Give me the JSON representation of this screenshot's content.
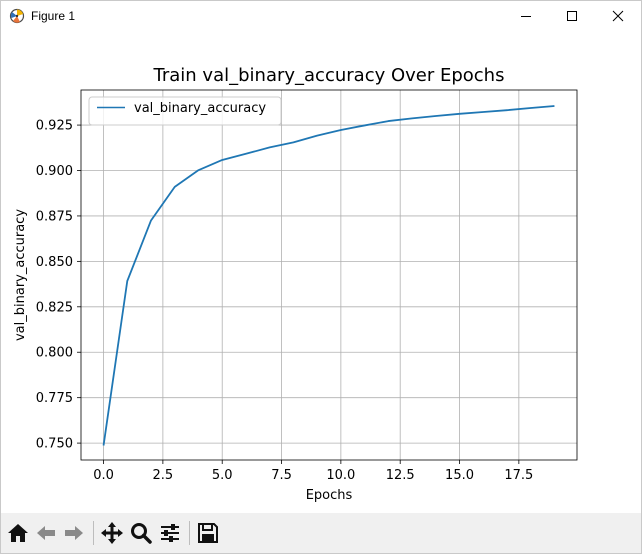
{
  "window": {
    "title": "Figure 1",
    "icons": {
      "app": "matplotlib-figure-icon",
      "minimize": "minimize-icon",
      "maximize": "maximize-icon",
      "close": "close-icon"
    }
  },
  "toolbar": {
    "buttons": [
      {
        "name": "home-button",
        "icon": "home-icon"
      },
      {
        "name": "back-button",
        "icon": "back-arrow-icon"
      },
      {
        "name": "forward-button",
        "icon": "forward-arrow-icon"
      },
      {
        "name": "pan-button",
        "icon": "move-icon"
      },
      {
        "name": "zoom-button",
        "icon": "zoom-icon"
      },
      {
        "name": "configure-subplots-button",
        "icon": "sliders-icon"
      },
      {
        "name": "save-button",
        "icon": "save-icon"
      }
    ]
  },
  "chart_data": {
    "type": "line",
    "title": "Train val_binary_accuracy Over Epochs",
    "xlabel": "Epochs",
    "ylabel": "val_binary_accuracy",
    "xlim": [
      -0.95,
      19.95
    ],
    "ylim": [
      0.7407,
      0.9443
    ],
    "xticks": [
      0,
      2.5,
      5,
      7.5,
      10,
      12.5,
      15,
      17.5
    ],
    "xtick_labels": [
      "0.0",
      "2.5",
      "5.0",
      "7.5",
      "10.0",
      "12.5",
      "15.0",
      "17.5"
    ],
    "yticks": [
      0.75,
      0.775,
      0.8,
      0.825,
      0.85,
      0.875,
      0.9,
      0.925
    ],
    "ytick_labels": [
      "0.750",
      "0.775",
      "0.800",
      "0.825",
      "0.850",
      "0.875",
      "0.900",
      "0.925"
    ],
    "grid": true,
    "legend_position": "top-left",
    "series": [
      {
        "name": "val_binary_accuracy",
        "color": "#1f77b4",
        "x": [
          0,
          1,
          2,
          3,
          4,
          5,
          6,
          7,
          8,
          9,
          10,
          11,
          12,
          13,
          14,
          15,
          16,
          17,
          18,
          19
        ],
        "y": [
          0.7487,
          0.8392,
          0.8725,
          0.891,
          0.9002,
          0.9058,
          0.9092,
          0.9127,
          0.9155,
          0.9192,
          0.9223,
          0.9248,
          0.9272,
          0.9287,
          0.93,
          0.9312,
          0.9322,
          0.9332,
          0.9344,
          0.9355
        ]
      }
    ]
  }
}
